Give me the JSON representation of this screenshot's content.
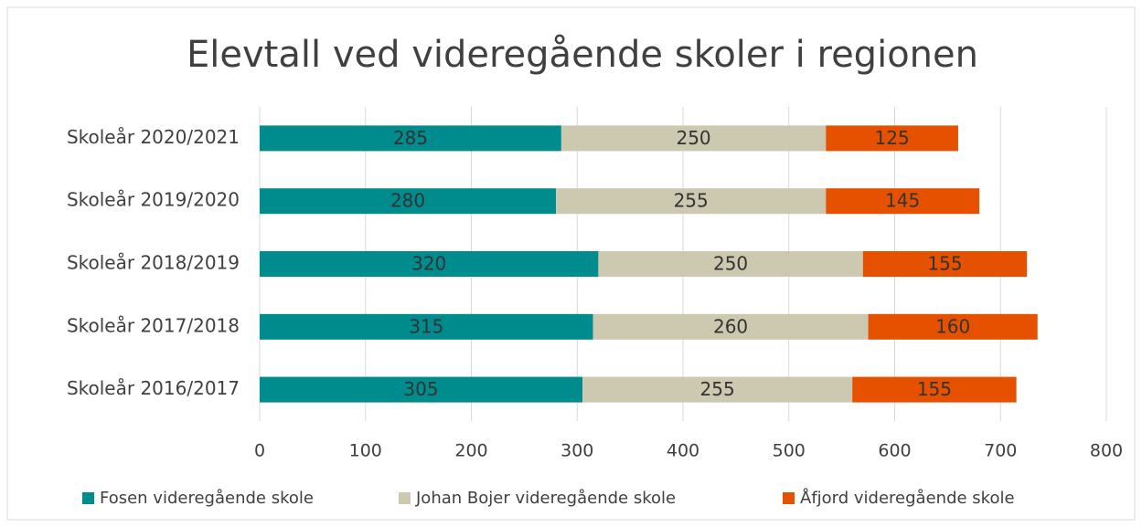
{
  "chart_data": {
    "type": "stacked-bar-horizontal",
    "title": "Elevtall ved videregående skoler i regionen",
    "categories": [
      "Skoleår 2020/2021",
      "Skoleår 2019/2020",
      "Skoleår 2018/2019",
      "Skoleår 2017/2018",
      "Skoleår 2016/2017"
    ],
    "series": [
      {
        "name": "Fosen videregående skole",
        "color": "#008b8c",
        "values": [
          285,
          280,
          320,
          315,
          305
        ]
      },
      {
        "name": "Johan Bojer videregående skole",
        "color": "#cdc8b0",
        "values": [
          250,
          255,
          250,
          260,
          255
        ]
      },
      {
        "name": "Åfjord videregående skole",
        "color": "#e65100",
        "values": [
          125,
          145,
          155,
          160,
          155
        ]
      }
    ],
    "xlim": [
      0,
      800
    ],
    "xticks": [
      0,
      100,
      200,
      300,
      400,
      500,
      600,
      700,
      800
    ],
    "grid": true,
    "legend": "bottom"
  }
}
